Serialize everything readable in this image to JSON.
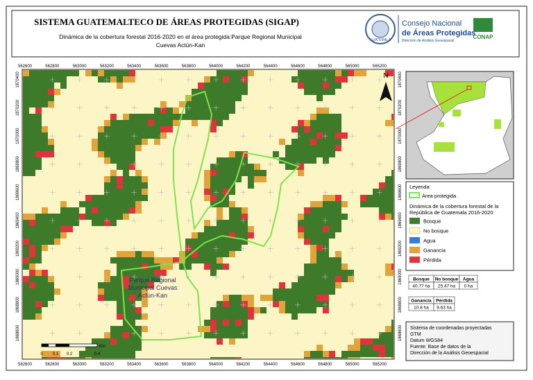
{
  "header": {
    "title": "SISTEMA GUATEMALTECO DE ÁREAS PROTEGIDAS  (SIGAP)",
    "subtitle_lines": [
      "Dinámica de la cobertura forestal 2016-2020 en el área protegida:Parque Regional Municipal",
      "Cuevas Actún-Kan"
    ],
    "seal_text": "GUATEMALA",
    "logo_lines": [
      "Consejo Nacional",
      "de Áreas Protegidas",
      "Dirección de Análisis Geoespacial"
    ],
    "conap": "CONAP"
  },
  "map": {
    "x_labels": [
      "562600",
      "562800",
      "563000",
      "563200",
      "563400",
      "563600",
      "563800",
      "564000",
      "564200",
      "564400",
      "564600",
      "564800",
      "565000",
      "565200"
    ],
    "y_labels": [
      "1870400",
      "1870200",
      "1870000",
      "1869800",
      "1869600",
      "1869400",
      "1869200",
      "1869000",
      "1868800",
      "1868600"
    ],
    "area_label": [
      "Parque Regional",
      "Municipal Cuevas",
      "Actún-Kan"
    ],
    "north": "N",
    "scale_labels": [
      "0",
      "0.1",
      "0.2",
      "0.4"
    ],
    "scale_unit": "Km"
  },
  "legend": {
    "title": "Leyenda",
    "area": "Área protegida",
    "subtitle": [
      "Dinámica de la cobertura forestal de la",
      "República de Guatemala 2016-2020"
    ],
    "items": [
      {
        "name": "Bosque",
        "color": "#3d7a2a"
      },
      {
        "name": "No bosque",
        "color": "#fcf6c6"
      },
      {
        "name": "Agua",
        "color": "#2f7fe0"
      },
      {
        "name": "Ganancia",
        "color": "#e2a43a"
      },
      {
        "name": "Pérdida",
        "color": "#e2323c"
      }
    ]
  },
  "table1": {
    "headers": [
      "Bosque",
      "No bosque",
      "Agua"
    ],
    "values": [
      "40.77 ha",
      "25.47 ha",
      "0 ha"
    ]
  },
  "table2": {
    "headers": [
      "Ganancia",
      "Pérdida"
    ],
    "values": [
      "10.8 ha",
      "9.63 ha"
    ]
  },
  "notes": [
    "Sistema de coordenadas proyectadas",
    "GTM",
    "Datum WGS84",
    "Fuente: Base de datos de la",
    "Dirección de la Análisis Geoespacial"
  ]
}
